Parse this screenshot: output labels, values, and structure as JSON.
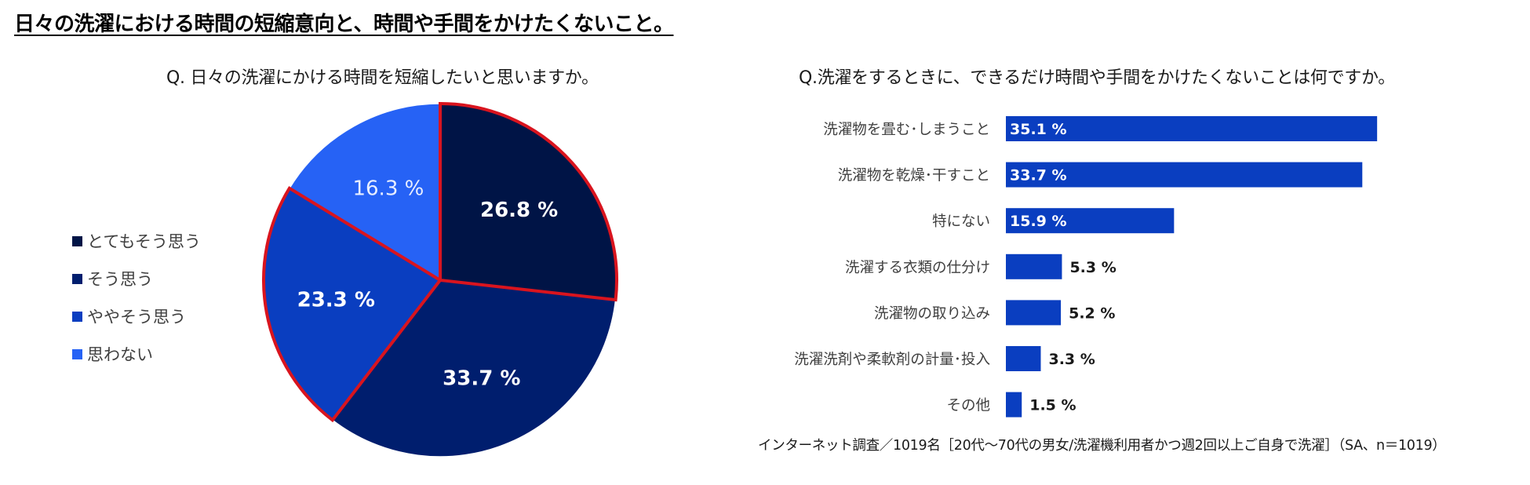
{
  "page": {
    "title": "日々の洗濯における時間の短縮意向と、時間や手間をかけたくないこと。"
  },
  "footnote": "インターネット調査／1019名［20代～70代の男女/洗濯機利用者かつ週2回以上ご自身で洗濯］（SA、n＝1019）",
  "chart_data": [
    {
      "type": "pie",
      "title": "Q. 日々の洗濯にかける時間を短縮したいと思いますか。",
      "categories": [
        "とてもそう思う",
        "そう思う",
        "ややそう思う",
        "思わない"
      ],
      "values": [
        26.8,
        33.7,
        23.3,
        16.3
      ],
      "labels": [
        "26.8 %",
        "33.7 %",
        "23.3 %",
        "16.3 %"
      ],
      "colors": [
        "#001446",
        "#001E6E",
        "#0A3EC0",
        "#2662F5"
      ],
      "highlighted": [
        "とてもそう思う",
        "ややそう思う"
      ],
      "highlight_color": "#D9141E",
      "legend_position": "left"
    },
    {
      "type": "bar",
      "orientation": "horizontal",
      "title": "Q.洗濯をするときに、できるだけ時間や手間をかけたくないことは何ですか。",
      "categories": [
        "洗濯物を畳む･しまうこと",
        "洗濯物を乾燥･干すこと",
        "特にない",
        "洗濯する衣類の仕分け",
        "洗濯物の取り込み",
        "洗濯洗剤や柔軟剤の計量･投入",
        "その他"
      ],
      "values": [
        35.1,
        33.7,
        15.9,
        5.3,
        5.2,
        3.3,
        1.5
      ],
      "labels": [
        "35.1 %",
        "33.7 %",
        "15.9 %",
        "5.3 %",
        "5.2 %",
        "3.3 %",
        "1.5 %"
      ],
      "xlim": [
        0,
        40
      ],
      "color": "#0A3EC0"
    }
  ]
}
